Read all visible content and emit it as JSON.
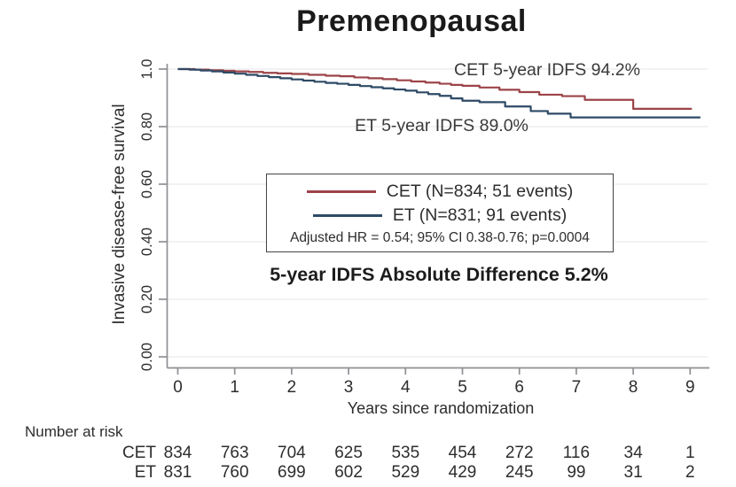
{
  "colors": {
    "cet": "#9c4449",
    "et": "#2e4a66",
    "grid": "#e4e4e8",
    "axis": "#8f8f94",
    "text": "#2d2d2d"
  },
  "chart_data": {
    "type": "line",
    "subtype": "kaplan-meier-step",
    "title": "Premenopausal",
    "xlabel": "Years since randomization",
    "ylabel": "Invasive disease-free survival",
    "xlim": [
      0,
      9.3
    ],
    "ylim": [
      0,
      1.0
    ],
    "x_ticks": [
      0,
      1,
      2,
      3,
      4,
      5,
      6,
      7,
      8,
      9
    ],
    "y_ticks": [
      "0.00",
      "0.20",
      "0.40",
      "0.60",
      "0.80",
      "1.0"
    ],
    "y_tick_values": [
      0,
      0.2,
      0.4,
      0.6,
      0.8,
      1.0
    ],
    "grid": true,
    "legend_position": "center",
    "annotations": {
      "cet": "CET 5-year IDFS 94.2%",
      "et": "ET 5-year IDFS 89.0%"
    },
    "legend": {
      "entries": [
        {
          "name": "CET",
          "label": "CET (N=834; 51 events)"
        },
        {
          "name": "ET",
          "label": "ET (N=831; 91 events)"
        }
      ],
      "note": "Adjusted HR = 0.54; 95% CI 0.38-0.76; p=0.0004"
    },
    "difference_note": "5-year IDFS Absolute Difference 5.2%",
    "series": [
      {
        "name": "CET",
        "color_key": "cet",
        "n": 834,
        "events": 51,
        "five_year_idfs": "94.2%",
        "points": [
          [
            0,
            1.0
          ],
          [
            0.3,
            0.998
          ],
          [
            0.55,
            0.996
          ],
          [
            0.8,
            0.994
          ],
          [
            1.0,
            0.992
          ],
          [
            1.25,
            0.99
          ],
          [
            1.5,
            0.987
          ],
          [
            1.75,
            0.985
          ],
          [
            2.0,
            0.983
          ],
          [
            2.3,
            0.98
          ],
          [
            2.6,
            0.977
          ],
          [
            2.85,
            0.975
          ],
          [
            3.1,
            0.971
          ],
          [
            3.35,
            0.968
          ],
          [
            3.6,
            0.965
          ],
          [
            3.85,
            0.961
          ],
          [
            4.1,
            0.957
          ],
          [
            4.35,
            0.953
          ],
          [
            4.6,
            0.949
          ],
          [
            4.8,
            0.945
          ],
          [
            5.0,
            0.942
          ],
          [
            5.3,
            0.936
          ],
          [
            5.65,
            0.928
          ],
          [
            6.0,
            0.92
          ],
          [
            6.35,
            0.911
          ],
          [
            6.75,
            0.906
          ],
          [
            7.15,
            0.893
          ],
          [
            8.0,
            0.862
          ],
          [
            9.03,
            0.862
          ]
        ]
      },
      {
        "name": "ET",
        "color_key": "et",
        "n": 831,
        "events": 91,
        "five_year_idfs": "89.0%",
        "points": [
          [
            0,
            1.0
          ],
          [
            0.2,
            0.998
          ],
          [
            0.4,
            0.995
          ],
          [
            0.6,
            0.992
          ],
          [
            0.8,
            0.988
          ],
          [
            1.0,
            0.984
          ],
          [
            1.2,
            0.98
          ],
          [
            1.4,
            0.976
          ],
          [
            1.6,
            0.972
          ],
          [
            1.8,
            0.968
          ],
          [
            2.0,
            0.964
          ],
          [
            2.2,
            0.96
          ],
          [
            2.4,
            0.956
          ],
          [
            2.6,
            0.952
          ],
          [
            2.8,
            0.949
          ],
          [
            3.0,
            0.945
          ],
          [
            3.2,
            0.941
          ],
          [
            3.4,
            0.937
          ],
          [
            3.6,
            0.933
          ],
          [
            3.8,
            0.929
          ],
          [
            4.0,
            0.925
          ],
          [
            4.2,
            0.919
          ],
          [
            4.4,
            0.913
          ],
          [
            4.6,
            0.907
          ],
          [
            4.8,
            0.898
          ],
          [
            5.0,
            0.89
          ],
          [
            5.3,
            0.885
          ],
          [
            5.75,
            0.87
          ],
          [
            6.2,
            0.854
          ],
          [
            6.5,
            0.845
          ],
          [
            6.9,
            0.832
          ],
          [
            9.18,
            0.832
          ]
        ]
      }
    ],
    "number_at_risk": {
      "label": "Number at risk",
      "times": [
        0,
        1,
        2,
        3,
        4,
        5,
        6,
        7,
        8,
        9
      ],
      "rows": [
        {
          "name": "CET",
          "counts": [
            834,
            763,
            704,
            625,
            535,
            454,
            272,
            116,
            34,
            1
          ]
        },
        {
          "name": "ET",
          "counts": [
            831,
            760,
            699,
            602,
            529,
            429,
            245,
            99,
            31,
            2
          ]
        }
      ]
    }
  }
}
